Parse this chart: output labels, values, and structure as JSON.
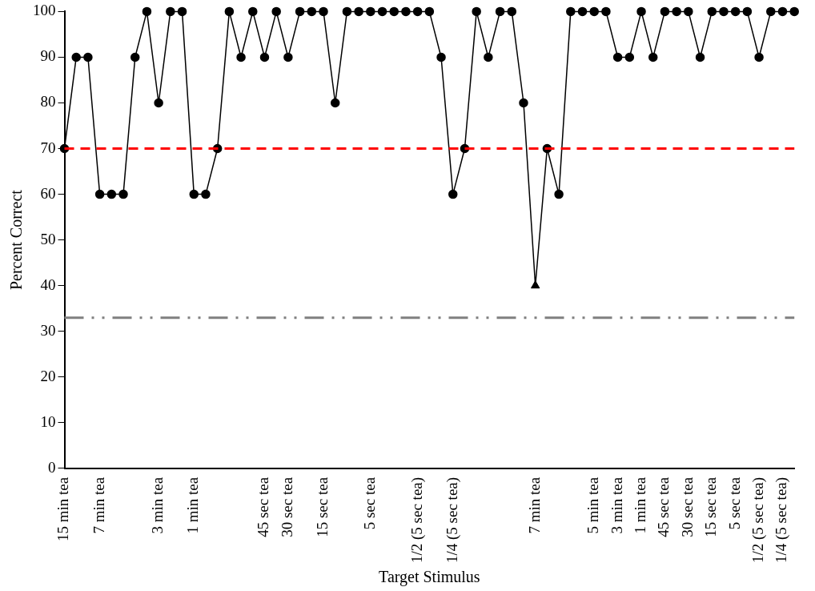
{
  "chart_data": {
    "type": "line",
    "xlabel": "Target Stimulus",
    "ylabel": "Percent Correct",
    "categories": [
      "15 min tea",
      null,
      null,
      "7 min tea",
      null,
      null,
      null,
      null,
      "3 min tea",
      null,
      null,
      "1 min tea",
      null,
      null,
      null,
      null,
      null,
      "45 sec tea",
      null,
      "30 sec tea",
      null,
      null,
      "15 sec tea",
      null,
      null,
      null,
      "5 sec tea",
      null,
      null,
      null,
      "1/2 (5 sec tea)",
      null,
      null,
      "1/4 (5 sec tea)",
      null,
      null,
      null,
      null,
      null,
      null,
      "7 min tea",
      null,
      null,
      null,
      null,
      "5 min tea",
      null,
      "3 min tea",
      null,
      "1 min tea",
      null,
      "45 sec tea",
      null,
      "30 sec tea",
      null,
      "15 sec tea",
      null,
      "5 sec tea",
      null,
      "1/2 (5 sec tea)",
      null,
      "1/4 (5 sec tea)",
      null
    ],
    "series": [
      {
        "color": "#000000",
        "marker": "circle",
        "values": [
          70,
          90,
          90,
          60,
          60,
          60,
          90,
          100,
          80,
          100,
          100,
          60,
          60,
          70,
          100,
          90,
          100,
          90,
          100,
          90,
          100,
          100,
          100,
          80,
          100,
          100,
          100,
          100,
          100,
          100,
          100,
          100,
          90,
          60,
          70,
          100,
          90,
          100,
          100,
          80,
          40,
          70,
          60,
          100,
          100,
          100,
          100,
          90,
          90,
          100,
          90,
          100,
          100,
          100,
          90,
          100,
          100,
          100,
          100,
          90,
          100,
          100,
          100
        ]
      },
      {
        "type": "scatter",
        "color": "#000000",
        "marker": "triangle",
        "values": [
          null,
          null,
          null,
          null,
          null,
          null,
          null,
          null,
          null,
          null,
          null,
          null,
          null,
          null,
          null,
          null,
          null,
          null,
          null,
          null,
          null,
          null,
          null,
          null,
          null,
          null,
          null,
          null,
          null,
          null,
          null,
          null,
          null,
          null,
          null,
          null,
          null,
          null,
          null,
          null,
          40,
          null,
          null,
          null,
          null,
          null,
          null,
          null,
          null,
          null,
          null,
          null,
          null,
          null,
          null,
          null,
          null,
          null,
          null,
          null,
          null,
          null,
          null
        ]
      }
    ],
    "ylim": [
      0,
      100
    ],
    "yticks": [
      0,
      10,
      20,
      30,
      40,
      50,
      60,
      70,
      80,
      90,
      100
    ],
    "grid": false,
    "legend": false,
    "ref_lines": [
      {
        "axis": "y",
        "value": 70,
        "color": "#ff0000",
        "line_style": "dashed"
      },
      {
        "axis": "y",
        "value": 33,
        "color": "#808080",
        "line_style": "dashdotdot"
      }
    ]
  }
}
